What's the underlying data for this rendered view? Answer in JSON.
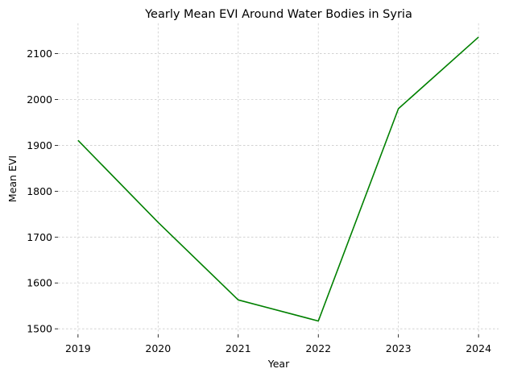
{
  "chart_data": {
    "type": "line",
    "title": "Yearly Mean EVI Around Water Bodies in Syria",
    "xlabel": "Year",
    "ylabel": "Mean EVI",
    "x": [
      2019,
      2020,
      2021,
      2022,
      2023,
      2024
    ],
    "x_tick_labels": [
      "2019",
      "2020",
      "2021",
      "2022",
      "2023",
      "2024"
    ],
    "y_ticks": [
      1500,
      1600,
      1700,
      1800,
      1900,
      2000,
      2100
    ],
    "y_tick_labels": [
      "1500",
      "1600",
      "1700",
      "1800",
      "1900",
      "2000",
      "2100"
    ],
    "xlim": [
      2018.75,
      2024.25
    ],
    "ylim": [
      1488,
      2166
    ],
    "grid": true,
    "series": [
      {
        "color": "#008000",
        "values": [
          1911,
          1732,
          1563,
          1517,
          1980,
          2136
        ]
      }
    ]
  }
}
